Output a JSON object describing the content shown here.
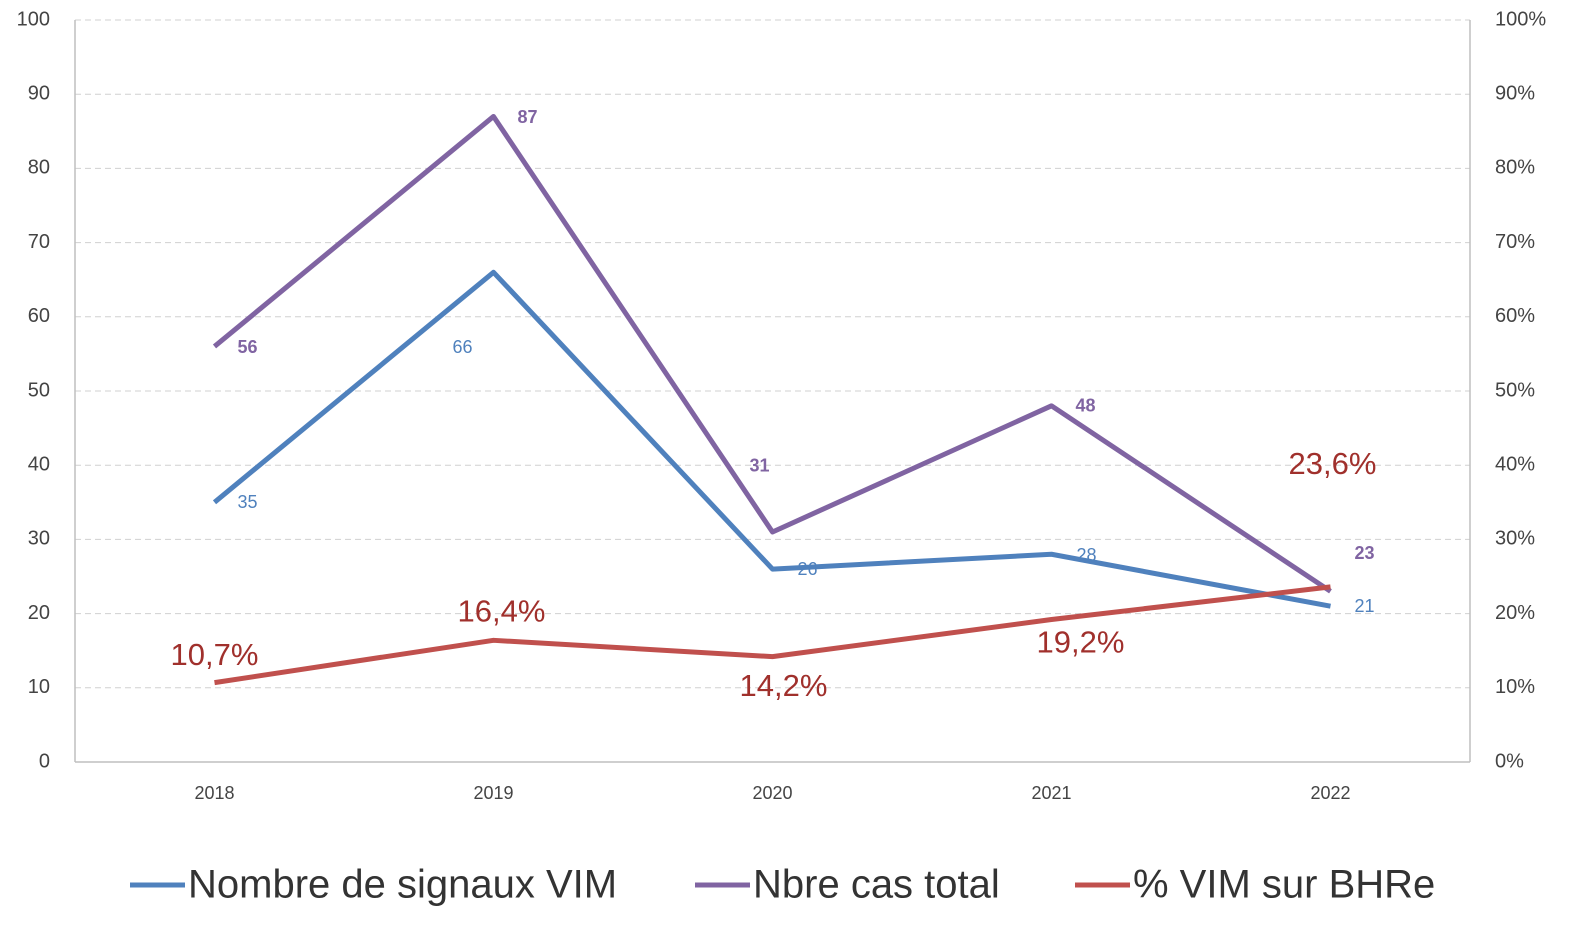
{
  "chart_data": {
    "type": "line",
    "categories": [
      "2018",
      "2019",
      "2020",
      "2021",
      "2022"
    ],
    "series": [
      {
        "name": "Nombre de signaux VIM",
        "color": "#4f81bd",
        "values": [
          35,
          66,
          26,
          28,
          21
        ]
      },
      {
        "name": "Nbre cas total",
        "color": "#8064a2",
        "values": [
          56,
          87,
          31,
          48,
          23
        ]
      },
      {
        "name": "% VIM sur BHRe",
        "color": "#c0504d",
        "axis": "y2",
        "values": [
          10.7,
          16.4,
          14.2,
          19.2,
          23.6
        ],
        "value_labels": [
          "10,7%",
          "16,4%",
          "14,2%",
          "19,2%",
          "23,6%"
        ]
      }
    ],
    "ylim": [
      0,
      100
    ],
    "yticks": [
      0,
      10,
      20,
      30,
      40,
      50,
      60,
      70,
      80,
      90,
      100
    ],
    "y2lim": [
      0,
      100
    ],
    "y2ticks": [
      {
        "value": 0,
        "label": "0%"
      },
      {
        "value": 10,
        "label": "10%"
      },
      {
        "value": 20,
        "label": "20%"
      },
      {
        "value": 30,
        "label": "30%"
      },
      {
        "value": 40,
        "label": "40%"
      },
      {
        "value": 50,
        "label": "50%"
      },
      {
        "value": 60,
        "label": "60%"
      },
      {
        "value": 70,
        "label": "70%"
      },
      {
        "value": 80,
        "label": "80%"
      },
      {
        "value": 90,
        "label": "90%"
      },
      {
        "value": 100,
        "label": "100%"
      }
    ],
    "grid": true,
    "legend": "bottom"
  }
}
